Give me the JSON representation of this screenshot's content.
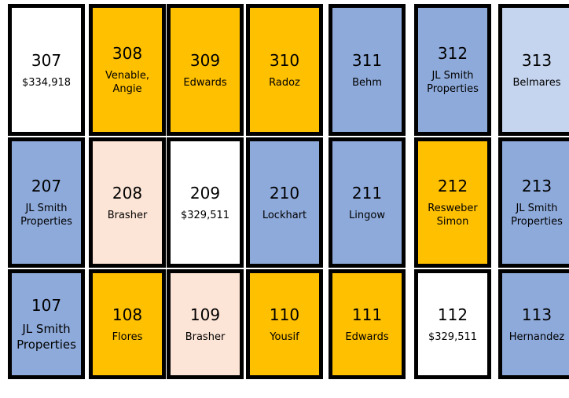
{
  "rows": [
    {
      "cells": [
        {
          "unit": "307",
          "label": "$334,918",
          "color": "#ffffff"
        },
        {
          "unit": "308",
          "label": "Venable, Angie",
          "color": "#ffc000"
        },
        {
          "unit": "309",
          "label": "Edwards",
          "color": "#ffc000"
        },
        {
          "unit": "310",
          "label": "Radoz",
          "color": "#ffc000"
        },
        {
          "unit": "311",
          "label": "Behm",
          "color": "#8eaadb"
        },
        {
          "unit": "312",
          "label": "JL Smith Properties",
          "color": "#8eaadb"
        },
        {
          "unit": "313",
          "label": "Belmares",
          "color": "#c5d5ef"
        }
      ]
    },
    {
      "cells": [
        {
          "unit": "207",
          "label": "JL Smith Properties",
          "color": "#8eaadb"
        },
        {
          "unit": "208",
          "label": "Brasher",
          "color": "#fce4d6"
        },
        {
          "unit": "209",
          "label": "$329,511",
          "color": "#ffffff"
        },
        {
          "unit": "210",
          "label": "Lockhart",
          "color": "#8eaadb"
        },
        {
          "unit": "211",
          "label": "Lingow",
          "color": "#8eaadb"
        },
        {
          "unit": "212",
          "label": "Resweber Simon",
          "color": "#ffc000"
        },
        {
          "unit": "213",
          "label": "JL Smith Properties",
          "color": "#8eaadb"
        }
      ]
    },
    {
      "cells": [
        {
          "unit": "107",
          "label": "JL Smith Properties",
          "color": "#8eaadb"
        },
        {
          "unit": "108",
          "label": "Flores",
          "color": "#ffc000"
        },
        {
          "unit": "109",
          "label": "Brasher",
          "color": "#fce4d6"
        },
        {
          "unit": "110",
          "label": "Yousif",
          "color": "#ffc000"
        },
        {
          "unit": "111",
          "label": "Edwards",
          "color": "#ffc000"
        },
        {
          "unit": "112",
          "label": "$329,511",
          "color": "#ffffff"
        },
        {
          "unit": "113",
          "label": "Hernandez",
          "color": "#8eaadb"
        }
      ]
    }
  ]
}
